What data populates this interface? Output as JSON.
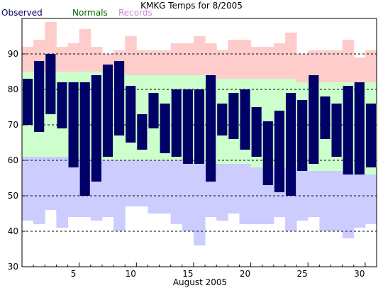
{
  "chart_data": {
    "type": "bar",
    "title": "KMKG Temps for 8/2005",
    "xlabel": "August 2005",
    "ylabel": "",
    "legend": [
      {
        "name": "Observed",
        "color": "#000066"
      },
      {
        "name": "Normals",
        "color": "#006600"
      },
      {
        "name": "Records",
        "color": "#cc88cc"
      }
    ],
    "colors": {
      "observed_bar": "#000066",
      "records_band": "#ffcccc",
      "normals_band": "#ccffcc",
      "low_band": "#ccccff",
      "gridline": "#000000",
      "axis": "#000000"
    },
    "ylim": [
      30,
      100
    ],
    "yticks": [
      30,
      40,
      50,
      60,
      70,
      80,
      90
    ],
    "xlim": [
      1,
      31
    ],
    "xticks": [
      5,
      10,
      15,
      20,
      25,
      30
    ],
    "grid": "dashed horizontal",
    "legend_placement": "top-left",
    "days": [
      1,
      2,
      3,
      4,
      5,
      6,
      7,
      8,
      9,
      10,
      11,
      12,
      13,
      14,
      15,
      16,
      17,
      18,
      19,
      20,
      21,
      22,
      23,
      24,
      25,
      26,
      27,
      28,
      29,
      30,
      31
    ],
    "observed_high": [
      83,
      88,
      90,
      82,
      82,
      82,
      84,
      87,
      88,
      81,
      73,
      79,
      76,
      80,
      80,
      80,
      84,
      76,
      79,
      80,
      75,
      71,
      74,
      79,
      77,
      84,
      78,
      76,
      81,
      82,
      76
    ],
    "observed_low": [
      70,
      68,
      73,
      69,
      58,
      50,
      54,
      61,
      67,
      65,
      63,
      69,
      62,
      61,
      59,
      59,
      54,
      67,
      66,
      63,
      61,
      53,
      51,
      50,
      57,
      59,
      66,
      61,
      56,
      56,
      58
    ],
    "normal_high": [
      85,
      85,
      85,
      85,
      85,
      85,
      85,
      85,
      85,
      84,
      84,
      84,
      84,
      84,
      84,
      84,
      84,
      83,
      83,
      83,
      83,
      83,
      83,
      83,
      82,
      82,
      82,
      82,
      82,
      82,
      82
    ],
    "normal_low": [
      61,
      61,
      61,
      61,
      61,
      60,
      60,
      60,
      60,
      60,
      60,
      60,
      60,
      60,
      59,
      59,
      59,
      59,
      59,
      59,
      58,
      58,
      58,
      58,
      58,
      57,
      57,
      57,
      57,
      56,
      56
    ],
    "record_high": [
      92,
      94,
      99,
      92,
      93,
      97,
      92,
      90,
      91,
      95,
      91,
      91,
      91,
      93,
      93,
      95,
      93,
      91,
      94,
      94,
      92,
      92,
      93,
      96,
      90,
      91,
      91,
      91,
      94,
      89,
      91
    ],
    "record_low": [
      43,
      42,
      46,
      41,
      44,
      44,
      43,
      44,
      40,
      47,
      47,
      45,
      45,
      42,
      40,
      36,
      44,
      43,
      45,
      42,
      42,
      42,
      44,
      40,
      43,
      44,
      40,
      40,
      38,
      41,
      42
    ]
  }
}
